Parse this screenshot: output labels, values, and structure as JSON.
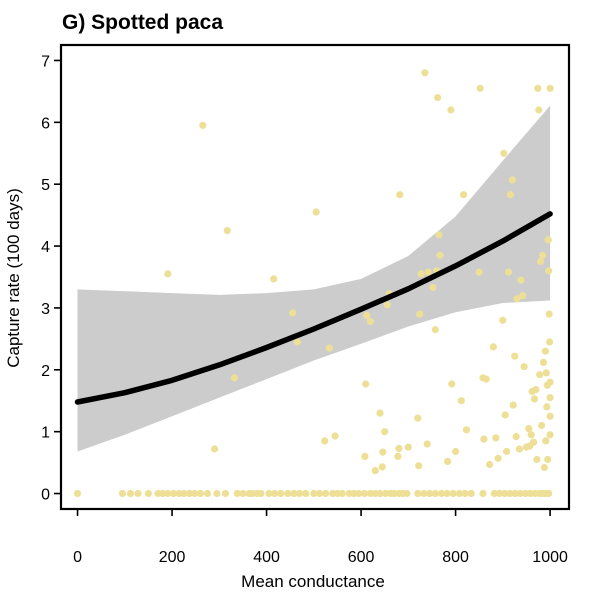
{
  "chart_data": {
    "type": "scatter",
    "title": "G) Spotted paca",
    "xlabel": "Mean conductance",
    "ylabel": "Capture rate (100 days)",
    "xlim": [
      -35,
      1040
    ],
    "ylim": [
      -0.25,
      7.25
    ],
    "xticks": [
      "0",
      "200",
      "400",
      "600",
      "800",
      "1000"
    ],
    "yticks": [
      "0",
      "1",
      "2",
      "3",
      "4",
      "5",
      "6",
      "7"
    ],
    "grid": false,
    "legend": "none",
    "colors": {
      "points": "#EEDF96",
      "fit_line": "#000000",
      "ci_band": "#CCCCCC",
      "frame": "#000000"
    },
    "fit": {
      "x": [
        0,
        100,
        200,
        300,
        400,
        500,
        600,
        700,
        800,
        900,
        1000
      ],
      "y": [
        1.48,
        1.63,
        1.83,
        2.08,
        2.36,
        2.66,
        2.98,
        3.31,
        3.68,
        4.08,
        4.52
      ],
      "lower": [
        0.68,
        0.95,
        1.25,
        1.55,
        1.85,
        2.15,
        2.42,
        2.7,
        2.93,
        3.08,
        3.12
      ],
      "upper": [
        3.3,
        3.27,
        3.24,
        3.21,
        3.24,
        3.3,
        3.47,
        3.84,
        4.48,
        5.38,
        6.27
      ]
    },
    "points": [
      [
        0,
        0
      ],
      [
        95,
        0
      ],
      [
        112,
        0
      ],
      [
        128,
        0
      ],
      [
        150,
        0
      ],
      [
        170,
        0
      ],
      [
        180,
        0
      ],
      [
        191,
        0
      ],
      [
        203,
        0
      ],
      [
        215,
        0
      ],
      [
        225,
        0
      ],
      [
        237,
        0
      ],
      [
        248,
        0
      ],
      [
        260,
        0
      ],
      [
        275,
        0
      ],
      [
        295,
        0
      ],
      [
        313,
        0
      ],
      [
        338,
        0
      ],
      [
        350,
        0
      ],
      [
        363,
        0
      ],
      [
        370,
        0
      ],
      [
        380,
        0
      ],
      [
        388,
        0
      ],
      [
        405,
        0
      ],
      [
        417,
        0
      ],
      [
        430,
        0
      ],
      [
        445,
        0
      ],
      [
        458,
        0
      ],
      [
        470,
        0
      ],
      [
        483,
        0
      ],
      [
        500,
        0
      ],
      [
        512,
        0
      ],
      [
        525,
        0
      ],
      [
        540,
        0
      ],
      [
        550,
        0
      ],
      [
        560,
        0
      ],
      [
        575,
        0
      ],
      [
        585,
        0
      ],
      [
        595,
        0
      ],
      [
        607,
        0
      ],
      [
        620,
        0
      ],
      [
        630,
        0
      ],
      [
        640,
        0
      ],
      [
        652,
        0
      ],
      [
        663,
        0
      ],
      [
        670,
        0
      ],
      [
        680,
        0
      ],
      [
        688,
        0
      ],
      [
        697,
        0
      ],
      [
        720,
        0
      ],
      [
        733,
        0
      ],
      [
        745,
        0
      ],
      [
        757,
        0
      ],
      [
        770,
        0
      ],
      [
        782,
        0
      ],
      [
        795,
        0
      ],
      [
        808,
        0
      ],
      [
        820,
        0
      ],
      [
        833,
        0
      ],
      [
        858,
        0
      ],
      [
        882,
        0
      ],
      [
        893,
        0
      ],
      [
        904,
        0
      ],
      [
        915,
        0
      ],
      [
        926,
        0
      ],
      [
        937,
        0
      ],
      [
        948,
        0
      ],
      [
        958,
        0
      ],
      [
        968,
        0
      ],
      [
        978,
        0
      ],
      [
        985,
        0
      ],
      [
        991,
        0
      ],
      [
        997,
        0
      ],
      [
        191,
        3.55
      ],
      [
        265,
        5.95
      ],
      [
        290,
        0.72
      ],
      [
        317,
        4.25
      ],
      [
        332,
        1.87
      ],
      [
        415,
        3.47
      ],
      [
        455,
        2.92
      ],
      [
        465,
        2.45
      ],
      [
        505,
        4.55
      ],
      [
        523,
        0.85
      ],
      [
        533,
        2.35
      ],
      [
        545,
        0.93
      ],
      [
        608,
        0.6
      ],
      [
        610,
        1.77
      ],
      [
        612,
        2.88
      ],
      [
        620,
        2.78
      ],
      [
        630,
        0.37
      ],
      [
        640,
        1.3
      ],
      [
        645,
        0.43
      ],
      [
        646,
        0.67
      ],
      [
        650,
        1.0
      ],
      [
        655,
        3.05
      ],
      [
        660,
        3.23
      ],
      [
        678,
        0.6
      ],
      [
        680,
        0.73
      ],
      [
        682,
        4.83
      ],
      [
        700,
        0.75
      ],
      [
        720,
        1.22
      ],
      [
        722,
        0.45
      ],
      [
        724,
        2.9
      ],
      [
        727,
        3.55
      ],
      [
        735,
        6.8
      ],
      [
        740,
        0.8
      ],
      [
        742,
        3.58
      ],
      [
        752,
        3.33
      ],
      [
        757,
        2.65
      ],
      [
        760,
        3.6
      ],
      [
        762,
        6.4
      ],
      [
        765,
        4.18
      ],
      [
        767,
        3.85
      ],
      [
        783,
        0.52
      ],
      [
        790,
        6.2
      ],
      [
        792,
        1.77
      ],
      [
        800,
        0.68
      ],
      [
        812,
        1.5
      ],
      [
        817,
        4.83
      ],
      [
        823,
        1.03
      ],
      [
        850,
        3.58
      ],
      [
        852,
        6.55
      ],
      [
        858,
        1.87
      ],
      [
        860,
        0.88
      ],
      [
        865,
        1.85
      ],
      [
        872,
        0.47
      ],
      [
        880,
        2.37
      ],
      [
        885,
        0.9
      ],
      [
        890,
        0.57
      ],
      [
        900,
        2.8
      ],
      [
        902,
        5.5
      ],
      [
        905,
        1.27
      ],
      [
        908,
        0.68
      ],
      [
        912,
        3.58
      ],
      [
        916,
        4.83
      ],
      [
        920,
        5.07
      ],
      [
        922,
        1.43
      ],
      [
        925,
        2.22
      ],
      [
        928,
        0.92
      ],
      [
        930,
        3.15
      ],
      [
        935,
        0.72
      ],
      [
        938,
        3.45
      ],
      [
        942,
        3.2
      ],
      [
        945,
        2.05
      ],
      [
        950,
        0.75
      ],
      [
        955,
        1.05
      ],
      [
        957,
        0.77
      ],
      [
        960,
        0.95
      ],
      [
        962,
        1.65
      ],
      [
        965,
        0.83
      ],
      [
        967,
        1.53
      ],
      [
        970,
        1.68
      ],
      [
        972,
        0.55
      ],
      [
        974,
        6.55
      ],
      [
        976,
        6.2
      ],
      [
        978,
        1.92
      ],
      [
        980,
        3.75
      ],
      [
        982,
        1.1
      ],
      [
        984,
        3.85
      ],
      [
        986,
        2.12
      ],
      [
        988,
        0.42
      ],
      [
        990,
        2.3
      ],
      [
        991,
        0.85
      ],
      [
        992,
        1.95
      ],
      [
        993,
        1.4
      ],
      [
        994,
        1.75
      ],
      [
        995,
        0.55
      ],
      [
        996,
        4.1
      ],
      [
        997,
        3.6
      ],
      [
        998,
        2.9
      ],
      [
        999,
        2.45
      ],
      [
        1000,
        6.55
      ],
      [
        1000,
        1.55
      ],
      [
        1000,
        1.8
      ],
      [
        1000,
        0.95
      ],
      [
        1000,
        1.25
      ]
    ]
  }
}
